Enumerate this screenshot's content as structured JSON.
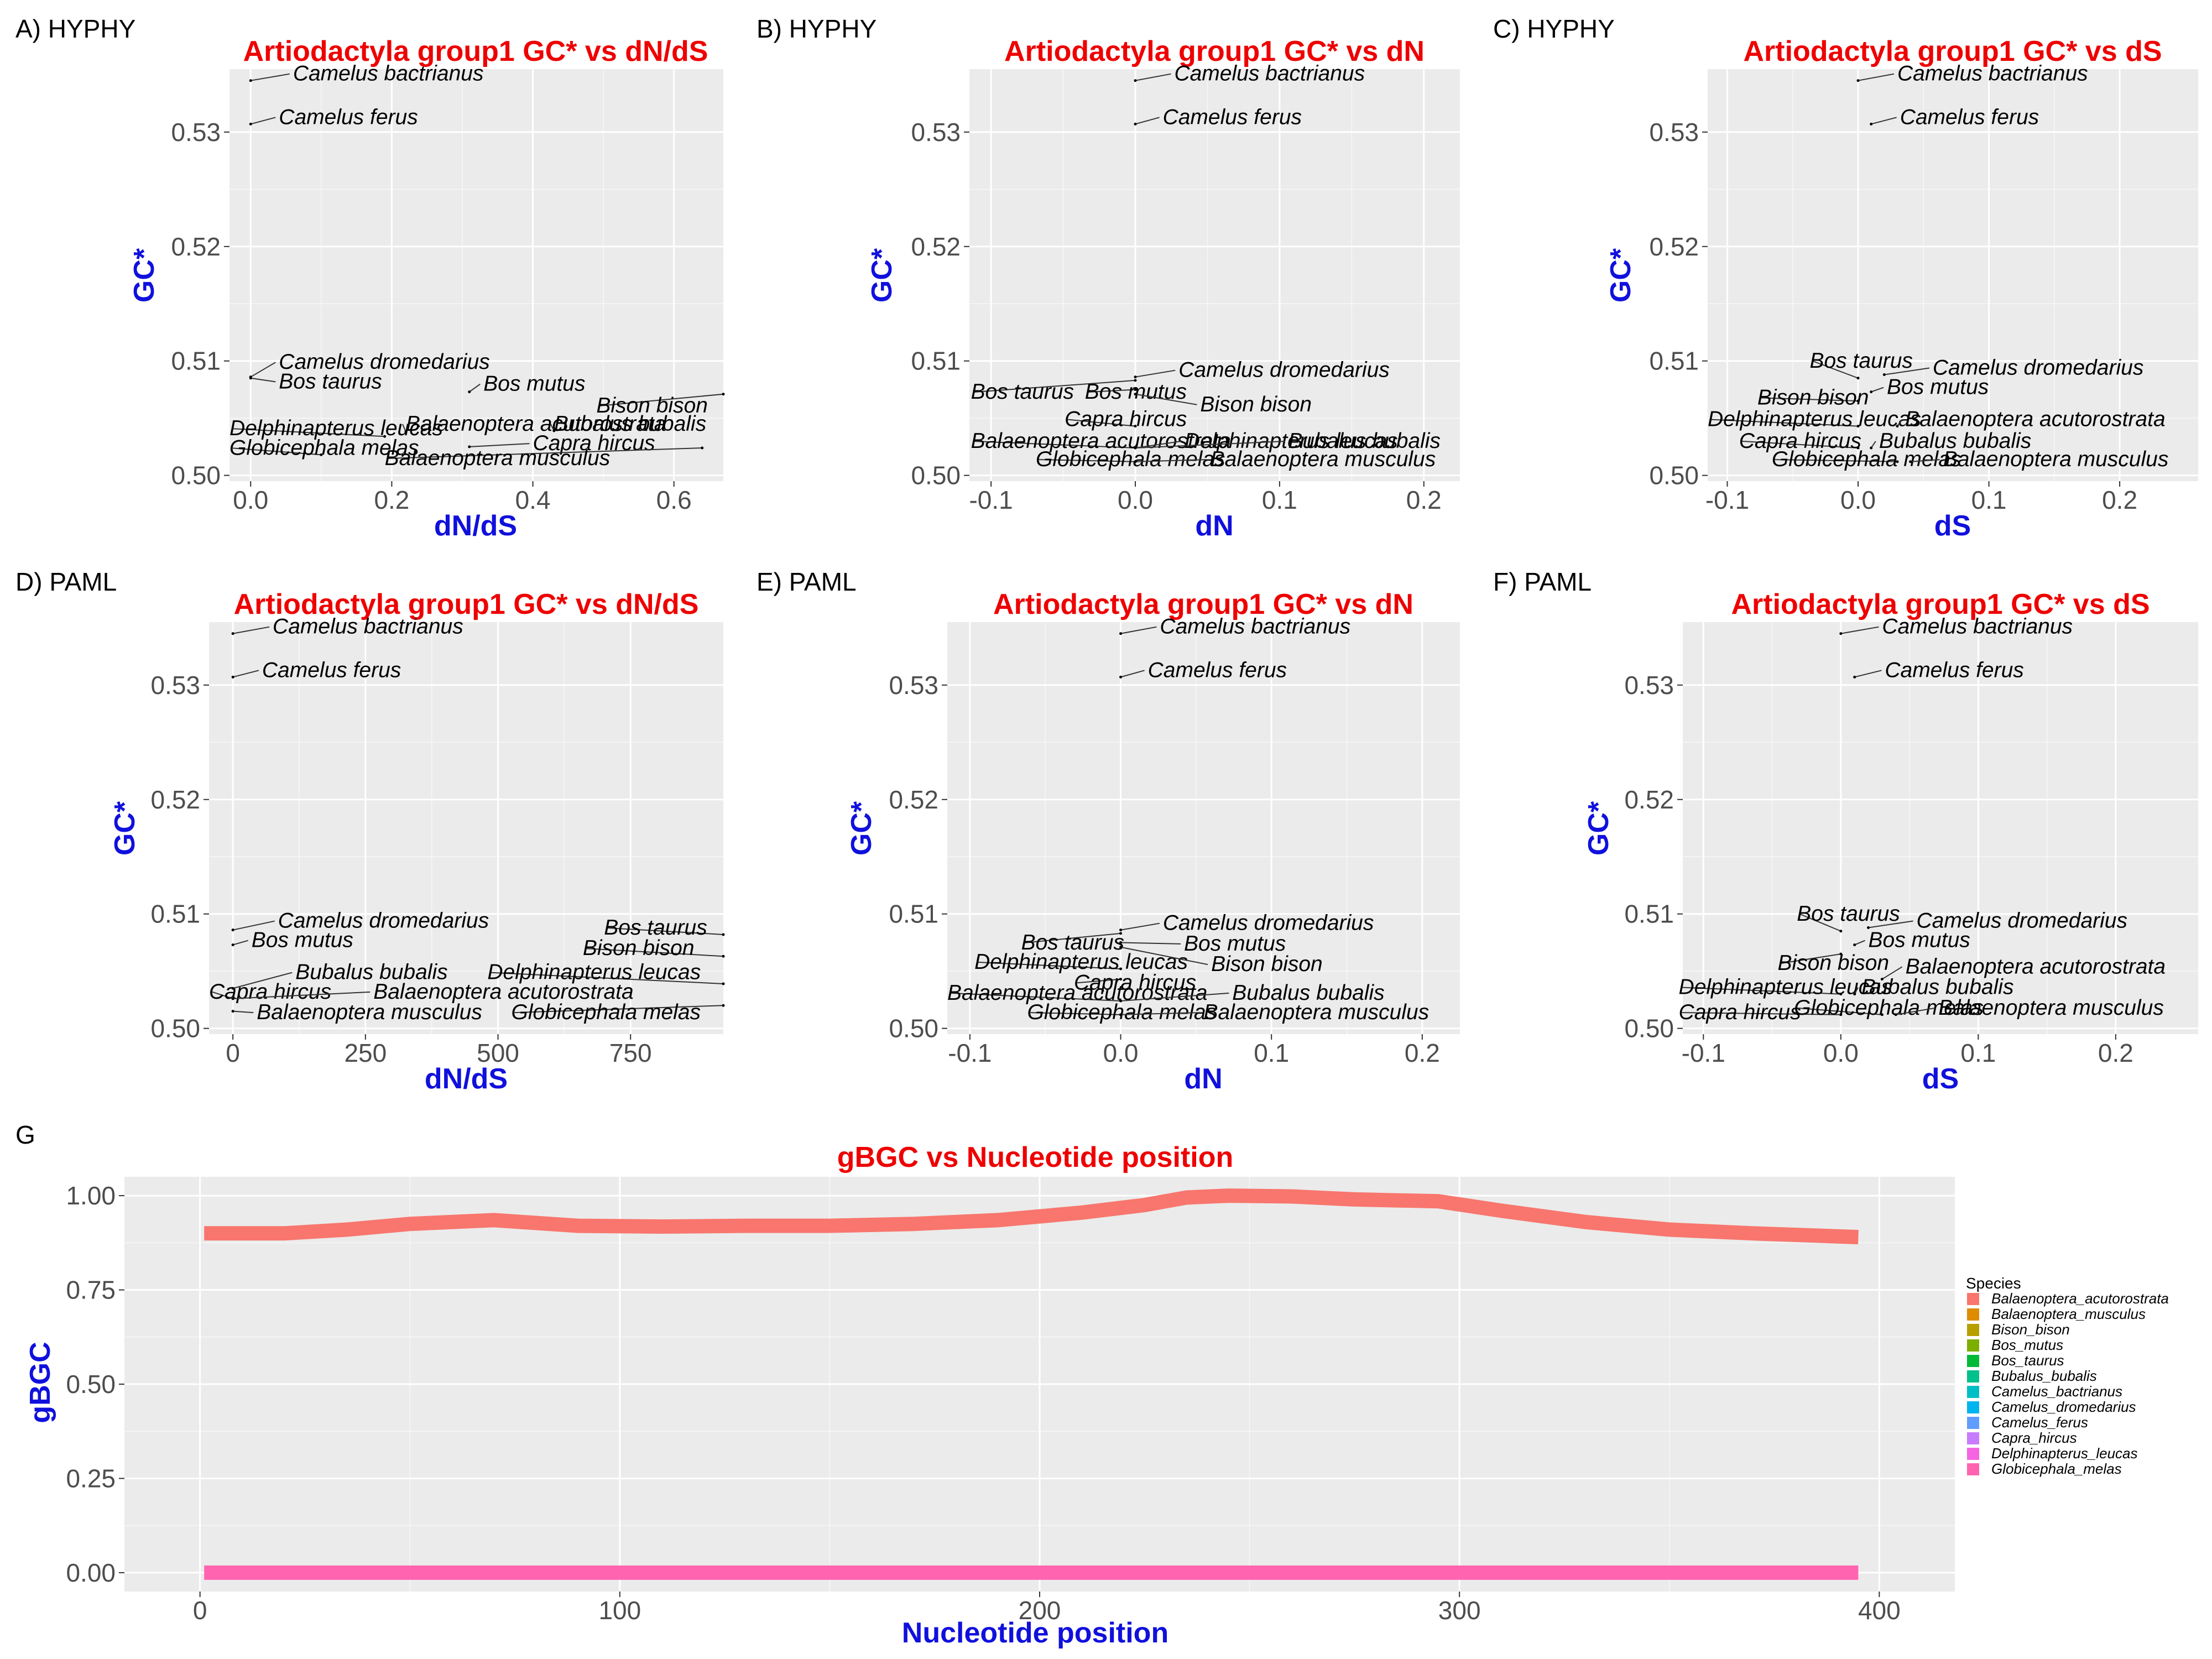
{
  "colors": {
    "title": "#ee0000",
    "axis_title": "#1010dd",
    "panel_bg": "#ebebeb",
    "gridline": "#ffffff",
    "tick_label": "#4d4d4d",
    "connector": "#333333"
  },
  "chart_data": [
    {
      "id": "A",
      "type": "scatter",
      "panel_label": "A) HYPHY",
      "title": "Artiodactyla group1 GC* vs dN/dS",
      "xlabel": "dN/dS",
      "ylabel": "GC*",
      "xlim": [
        -0.03,
        0.67
      ],
      "ylim": [
        0.4995,
        0.5355
      ],
      "xticks": [
        0.0,
        0.2,
        0.4,
        0.6
      ],
      "xtick_labels": [
        "0.0",
        "0.2",
        "0.4",
        "0.6"
      ],
      "yticks": [
        0.5,
        0.51,
        0.52,
        0.53
      ],
      "ytick_labels": [
        "0.50",
        "0.51",
        "0.52",
        "0.53"
      ],
      "points": [
        {
          "species": "Camelus bactrianus",
          "x": 0.0,
          "y": 0.5345,
          "lx": 0.06,
          "ly": 0.5345
        },
        {
          "species": "Camelus ferus",
          "x": 0.0,
          "y": 0.5307,
          "lx": 0.04,
          "ly": 0.5307
        },
        {
          "species": "Camelus dromedarius",
          "x": 0.0,
          "y": 0.5086,
          "lx": 0.04,
          "ly": 0.5093
        },
        {
          "species": "Bos taurus",
          "x": 0.0,
          "y": 0.5085,
          "lx": 0.04,
          "ly": 0.5076
        },
        {
          "species": "Bos mutus",
          "x": 0.31,
          "y": 0.5073,
          "lx": 0.33,
          "ly": 0.5074
        },
        {
          "species": "Bison bison",
          "x": 0.67,
          "y": 0.5071,
          "lx": 0.49,
          "ly": 0.5055
        },
        {
          "species": "Balaenoptera acutorostrata",
          "x": 0.22,
          "y": 0.5038,
          "lx": 0.22,
          "ly": 0.5039
        },
        {
          "species": "Bubalus bubalis",
          "x": 0.43,
          "y": 0.5039,
          "lx": 0.43,
          "ly": 0.5039
        },
        {
          "species": "Delphinapterus leucas",
          "x": 0.19,
          "y": 0.5034,
          "lx": -0.03,
          "ly": 0.5035
        },
        {
          "species": "Capra hircus",
          "x": 0.31,
          "y": 0.5025,
          "lx": 0.4,
          "ly": 0.5022
        },
        {
          "species": "Globicephala melas",
          "x": 0.1,
          "y": 0.5018,
          "lx": -0.03,
          "ly": 0.5018
        },
        {
          "species": "Balaenoptera musculus",
          "x": 0.64,
          "y": 0.5024,
          "lx": 0.19,
          "ly": 0.5009
        }
      ]
    },
    {
      "id": "B",
      "type": "scatter",
      "panel_label": "B) HYPHY",
      "title": "Artiodactyla group1 GC* vs dN",
      "xlabel": "dN",
      "ylabel": "GC*",
      "xlim": [
        -0.115,
        0.225
      ],
      "ylim": [
        0.4995,
        0.5355
      ],
      "xticks": [
        -0.1,
        0.0,
        0.1,
        0.2
      ],
      "xtick_labels": [
        "-0.1",
        "0.0",
        "0.1",
        "0.2"
      ],
      "yticks": [
        0.5,
        0.51,
        0.52,
        0.53
      ],
      "ytick_labels": [
        "0.50",
        "0.51",
        "0.52",
        "0.53"
      ],
      "points": [
        {
          "species": "Camelus bactrianus",
          "x": 0.0,
          "y": 0.5345,
          "lx": 0.027,
          "ly": 0.5345
        },
        {
          "species": "Camelus ferus",
          "x": 0.0,
          "y": 0.5307,
          "lx": 0.019,
          "ly": 0.5307
        },
        {
          "species": "Camelus dromedarius",
          "x": 0.0,
          "y": 0.5086,
          "lx": 0.03,
          "ly": 0.5086
        },
        {
          "species": "Bos taurus",
          "x": 0.0,
          "y": 0.5083,
          "lx": -0.114,
          "ly": 0.5067
        },
        {
          "species": "Bos mutus",
          "x": 0.0,
          "y": 0.5075,
          "lx": -0.035,
          "ly": 0.5067
        },
        {
          "species": "Bison bison",
          "x": 0.0,
          "y": 0.5071,
          "lx": 0.045,
          "ly": 0.5056
        },
        {
          "species": "Capra hircus",
          "x": 0.0,
          "y": 0.5043,
          "lx": -0.049,
          "ly": 0.5043
        },
        {
          "species": "Balaenoptera acutorostrata",
          "x": 0.0,
          "y": 0.5024,
          "lx": -0.114,
          "ly": 0.5024
        },
        {
          "species": "Delphinapterus leucas",
          "x": 0.0,
          "y": 0.5024,
          "lx": 0.034,
          "ly": 0.5024
        },
        {
          "species": "Bubalus bubalis",
          "x": 0.0,
          "y": 0.5024,
          "lx": 0.106,
          "ly": 0.5024
        },
        {
          "species": "Globicephala melas",
          "x": 0.0,
          "y": 0.5012,
          "lx": -0.069,
          "ly": 0.5008
        },
        {
          "species": "Balaenoptera musculus",
          "x": 0.0,
          "y": 0.5012,
          "lx": 0.052,
          "ly": 0.5008
        }
      ]
    },
    {
      "id": "C",
      "type": "scatter",
      "panel_label": "C) HYPHY",
      "title": "Artiodactyla group1 GC* vs dS",
      "xlabel": "dS",
      "ylabel": "GC*",
      "xlim": [
        -0.115,
        0.26
      ],
      "ylim": [
        0.4995,
        0.5355
      ],
      "xticks": [
        -0.1,
        0.0,
        0.1,
        0.2
      ],
      "xtick_labels": [
        "-0.1",
        "0.0",
        "0.1",
        "0.2"
      ],
      "yticks": [
        0.5,
        0.51,
        0.52,
        0.53
      ],
      "ytick_labels": [
        "0.50",
        "0.51",
        "0.52",
        "0.53"
      ],
      "points": [
        {
          "species": "Camelus bactrianus",
          "x": 0.0,
          "y": 0.5345,
          "lx": 0.03,
          "ly": 0.5345
        },
        {
          "species": "Camelus ferus",
          "x": 0.01,
          "y": 0.5307,
          "lx": 0.032,
          "ly": 0.5307
        },
        {
          "species": "Bos taurus",
          "x": 0.0,
          "y": 0.5085,
          "lx": -0.037,
          "ly": 0.5094
        },
        {
          "species": "Camelus dromedarius",
          "x": 0.02,
          "y": 0.5088,
          "lx": 0.057,
          "ly": 0.5088
        },
        {
          "species": "Bos mutus",
          "x": 0.01,
          "y": 0.5073,
          "lx": 0.022,
          "ly": 0.5071
        },
        {
          "species": "Bison bison",
          "x": 0.0,
          "y": 0.5065,
          "lx": -0.077,
          "ly": 0.5062
        },
        {
          "species": "Delphinapterus leucas",
          "x": 0.0,
          "y": 0.5043,
          "lx": -0.115,
          "ly": 0.5043
        },
        {
          "species": "Balaenoptera acutorostrata",
          "x": 0.03,
          "y": 0.5043,
          "lx": 0.036,
          "ly": 0.5043
        },
        {
          "species": "Capra hircus",
          "x": 0.0,
          "y": 0.5024,
          "lx": -0.091,
          "ly": 0.5024
        },
        {
          "species": "Bubalus bubalis",
          "x": 0.01,
          "y": 0.5024,
          "lx": 0.016,
          "ly": 0.5024
        },
        {
          "species": "Globicephala melas",
          "x": 0.03,
          "y": 0.5012,
          "lx": -0.066,
          "ly": 0.5008
        },
        {
          "species": "Balaenoptera musculus",
          "x": 0.04,
          "y": 0.5012,
          "lx": 0.065,
          "ly": 0.5008
        }
      ]
    },
    {
      "id": "D",
      "type": "scatter",
      "panel_label": "D) PAML",
      "title": "Artiodactyla group1 GC* vs dN/dS",
      "xlabel": "dN/dS",
      "ylabel": "GC*",
      "xlim": [
        -45,
        925
      ],
      "ylim": [
        0.4995,
        0.5355
      ],
      "xticks": [
        0,
        250,
        500,
        750
      ],
      "xtick_labels": [
        "0",
        "250",
        "500",
        "750"
      ],
      "yticks": [
        0.5,
        0.51,
        0.52,
        0.53
      ],
      "ytick_labels": [
        "0.50",
        "0.51",
        "0.52",
        "0.53"
      ],
      "points": [
        {
          "species": "Camelus bactrianus",
          "x": 0,
          "y": 0.5345,
          "lx": 75,
          "ly": 0.5345
        },
        {
          "species": "Camelus ferus",
          "x": 0,
          "y": 0.5307,
          "lx": 55,
          "ly": 0.5307
        },
        {
          "species": "Camelus dromedarius",
          "x": 0,
          "y": 0.5086,
          "lx": 85,
          "ly": 0.5088
        },
        {
          "species": "Bos mutus",
          "x": 0,
          "y": 0.5073,
          "lx": 35,
          "ly": 0.5071
        },
        {
          "species": "Bos taurus",
          "x": 925,
          "y": 0.5082,
          "lx": 700,
          "ly": 0.5082
        },
        {
          "species": "Bison bison",
          "x": 925,
          "y": 0.5063,
          "lx": 660,
          "ly": 0.5064
        },
        {
          "species": "Bubalus bubalis",
          "x": 0,
          "y": 0.5035,
          "lx": 118,
          "ly": 0.5043
        },
        {
          "species": "Delphinapterus leucas",
          "x": 925,
          "y": 0.5039,
          "lx": 480,
          "ly": 0.5043
        },
        {
          "species": "Capra hircus",
          "x": 0,
          "y": 0.5026,
          "lx": -45,
          "ly": 0.5026
        },
        {
          "species": "Balaenoptera acutorostrata",
          "x": 0,
          "y": 0.5026,
          "lx": 265,
          "ly": 0.5026
        },
        {
          "species": "Balaenoptera musculus",
          "x": 0,
          "y": 0.5015,
          "lx": 45,
          "ly": 0.5008
        },
        {
          "species": "Globicephala melas",
          "x": 925,
          "y": 0.502,
          "lx": 525,
          "ly": 0.5008
        }
      ]
    },
    {
      "id": "E",
      "type": "scatter",
      "panel_label": "E) PAML",
      "title": "Artiodactyla group1 GC* vs dN",
      "xlabel": "dN",
      "ylabel": "GC*",
      "xlim": [
        -0.115,
        0.225
      ],
      "ylim": [
        0.4995,
        0.5355
      ],
      "xticks": [
        -0.1,
        0.0,
        0.1,
        0.2
      ],
      "xtick_labels": [
        "-0.1",
        "0.0",
        "0.1",
        "0.2"
      ],
      "yticks": [
        0.5,
        0.51,
        0.52,
        0.53
      ],
      "ytick_labels": [
        "0.50",
        "0.51",
        "0.52",
        "0.53"
      ],
      "points": [
        {
          "species": "Camelus bactrianus",
          "x": 0.0,
          "y": 0.5345,
          "lx": 0.026,
          "ly": 0.5345
        },
        {
          "species": "Camelus ferus",
          "x": 0.0,
          "y": 0.5307,
          "lx": 0.018,
          "ly": 0.5307
        },
        {
          "species": "Camelus dromedarius",
          "x": 0.0,
          "y": 0.5086,
          "lx": 0.028,
          "ly": 0.5086
        },
        {
          "species": "Bos taurus",
          "x": 0.0,
          "y": 0.5083,
          "lx": -0.066,
          "ly": 0.5069
        },
        {
          "species": "Bos mutus",
          "x": 0.0,
          "y": 0.5075,
          "lx": 0.042,
          "ly": 0.5068
        },
        {
          "species": "Delphinapterus leucas",
          "x": 0.0,
          "y": 0.5052,
          "lx": -0.097,
          "ly": 0.5052
        },
        {
          "species": "Bison bison",
          "x": 0.0,
          "y": 0.5071,
          "lx": 0.06,
          "ly": 0.505
        },
        {
          "species": "Capra hircus",
          "x": 0.0,
          "y": 0.5043,
          "lx": -0.031,
          "ly": 0.5034
        },
        {
          "species": "Balaenoptera acutorostrata",
          "x": 0.0,
          "y": 0.5024,
          "lx": -0.115,
          "ly": 0.5025
        },
        {
          "species": "Bubalus bubalis",
          "x": 0.0,
          "y": 0.5024,
          "lx": 0.074,
          "ly": 0.5025
        },
        {
          "species": "Globicephala melas",
          "x": 0.0,
          "y": 0.5012,
          "lx": -0.062,
          "ly": 0.5008
        },
        {
          "species": "Balaenoptera musculus",
          "x": 0.0,
          "y": 0.5012,
          "lx": 0.055,
          "ly": 0.5008
        }
      ]
    },
    {
      "id": "F",
      "type": "scatter",
      "panel_label": "F) PAML",
      "title": "Artiodactyla group1 GC* vs dS",
      "xlabel": "dS",
      "ylabel": "GC*",
      "xlim": [
        -0.115,
        0.26
      ],
      "ylim": [
        0.4995,
        0.5355
      ],
      "xticks": [
        -0.1,
        0.0,
        0.1,
        0.2
      ],
      "xtick_labels": [
        "-0.1",
        "0.0",
        "0.1",
        "0.2"
      ],
      "yticks": [
        0.5,
        0.51,
        0.52,
        0.53
      ],
      "ytick_labels": [
        "0.50",
        "0.51",
        "0.52",
        "0.53"
      ],
      "points": [
        {
          "species": "Camelus bactrianus",
          "x": 0.0,
          "y": 0.5345,
          "lx": 0.03,
          "ly": 0.5345
        },
        {
          "species": "Camelus ferus",
          "x": 0.01,
          "y": 0.5307,
          "lx": 0.032,
          "ly": 0.5307
        },
        {
          "species": "Bos taurus",
          "x": 0.0,
          "y": 0.5085,
          "lx": -0.032,
          "ly": 0.5094
        },
        {
          "species": "Camelus dromedarius",
          "x": 0.02,
          "y": 0.5088,
          "lx": 0.055,
          "ly": 0.5088
        },
        {
          "species": "Bos mutus",
          "x": 0.01,
          "y": 0.5073,
          "lx": 0.02,
          "ly": 0.5071
        },
        {
          "species": "Bison bison",
          "x": 0.0,
          "y": 0.5065,
          "lx": -0.046,
          "ly": 0.5051
        },
        {
          "species": "Balaenoptera acutorostrata",
          "x": 0.03,
          "y": 0.5043,
          "lx": 0.047,
          "ly": 0.5048
        },
        {
          "species": "Delphinapterus leucas",
          "x": 0.0,
          "y": 0.503,
          "lx": -0.118,
          "ly": 0.503
        },
        {
          "species": "Bubalus bubalis",
          "x": 0.01,
          "y": 0.503,
          "lx": 0.015,
          "ly": 0.503
        },
        {
          "species": "Capra hircus",
          "x": 0.0,
          "y": 0.5012,
          "lx": -0.118,
          "ly": 0.5008
        },
        {
          "species": "Globicephala melas",
          "x": 0.03,
          "y": 0.5012,
          "lx": -0.034,
          "ly": 0.5012
        },
        {
          "species": "Balaenoptera musculus",
          "x": 0.04,
          "y": 0.5012,
          "lx": 0.071,
          "ly": 0.5012
        }
      ]
    },
    {
      "id": "G",
      "type": "line",
      "panel_label": "G",
      "title": "gBGC vs Nucleotide position",
      "xlabel": "Nucleotide position",
      "ylabel": "gBGC",
      "xlim": [
        -18,
        418
      ],
      "ylim": [
        -0.05,
        1.05
      ],
      "xticks": [
        0,
        100,
        200,
        300,
        400
      ],
      "xtick_labels": [
        "0",
        "100",
        "200",
        "300",
        "400"
      ],
      "yticks": [
        0.0,
        0.25,
        0.5,
        0.75,
        1.0
      ],
      "ytick_labels": [
        "0.00",
        "0.25",
        "0.50",
        "0.75",
        "1.00"
      ],
      "legend": {
        "title": "Species",
        "position": "right",
        "entries": [
          {
            "name": "Balaenoptera_acutorostrata",
            "color": "#F8766D"
          },
          {
            "name": "Balaenoptera_musculus",
            "color": "#DE8C00"
          },
          {
            "name": "Bison_bison",
            "color": "#B79F00"
          },
          {
            "name": "Bos_mutus",
            "color": "#7CAE00"
          },
          {
            "name": "Bos_taurus",
            "color": "#00BA38"
          },
          {
            "name": "Bubalus_bubalis",
            "color": "#00C08B"
          },
          {
            "name": "Camelus_bactrianus",
            "color": "#00BFC4"
          },
          {
            "name": "Camelus_dromedarius",
            "color": "#00B4F0"
          },
          {
            "name": "Camelus_ferus",
            "color": "#619CFF"
          },
          {
            "name": "Capra_hircus",
            "color": "#C77CFF"
          },
          {
            "name": "Delphinapterus_leucas",
            "color": "#F564E3"
          },
          {
            "name": "Globicephala_melas",
            "color": "#FF64B0"
          }
        ]
      },
      "series": [
        {
          "name": "Balaenoptera_acutorostrata",
          "color": "#F8766D",
          "x": [
            1,
            20,
            35,
            50,
            70,
            90,
            110,
            130,
            150,
            170,
            190,
            210,
            225,
            235,
            245,
            260,
            275,
            295,
            310,
            330,
            350,
            370,
            395
          ],
          "y": [
            0.9,
            0.9,
            0.91,
            0.925,
            0.935,
            0.92,
            0.918,
            0.92,
            0.92,
            0.925,
            0.935,
            0.955,
            0.975,
            0.995,
            1.0,
            0.998,
            0.99,
            0.985,
            0.96,
            0.93,
            0.91,
            0.9,
            0.89
          ]
        },
        {
          "name": "Globicephala_melas",
          "color": "#FF64B0",
          "x": [
            1,
            395
          ],
          "y": [
            0.0,
            0.0
          ]
        }
      ]
    }
  ]
}
